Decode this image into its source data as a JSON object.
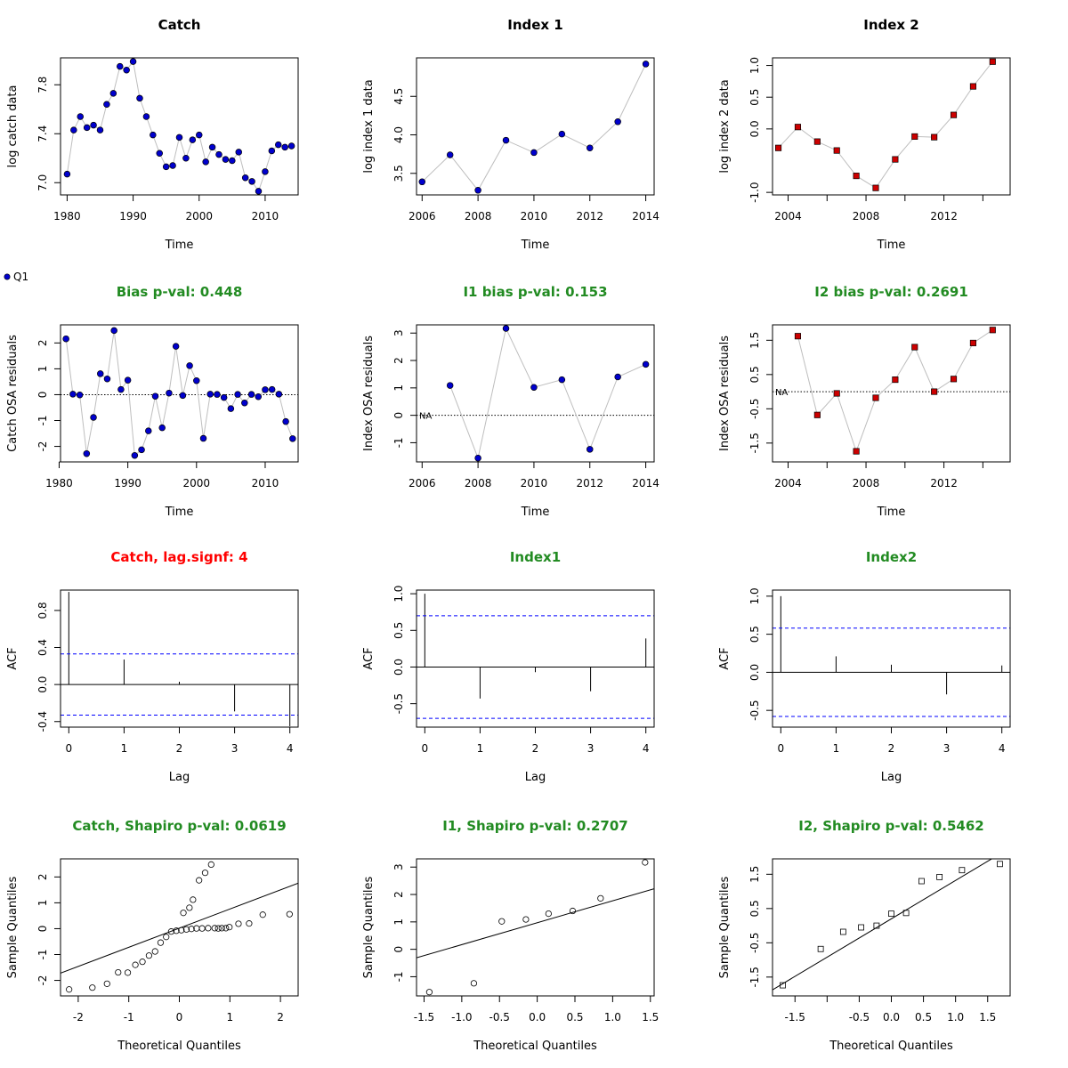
{
  "colors": {
    "title_default": "#000000",
    "title_good": "#228B22",
    "title_bad": "#FF0000",
    "catch_point_fill": "#0000CD",
    "index1_point_fill": "#0000CD",
    "index2_point_fill": "#CC0000",
    "connect_line": "#BEBEBE",
    "ci_line": "#0000FF"
  },
  "legend": {
    "label": "Q1"
  },
  "chart_data": [
    {
      "id": "catch-data",
      "type": "line",
      "title": "Catch",
      "title_color": "default",
      "xlabel": "Time",
      "ylabel": "log catch data",
      "xlim": [
        1979,
        2015
      ],
      "ylim": [
        6.9,
        8.02
      ],
      "xticks": [
        1980,
        1990,
        2000,
        2010
      ],
      "yticks": [
        7.0,
        7.4,
        7.8
      ],
      "ytick_labels": [
        "7.0",
        "7.4",
        "7.8"
      ],
      "point": "circle",
      "point_color": "catch",
      "series": [
        {
          "x": [
            1980,
            1981,
            1982,
            1983,
            1984,
            1985,
            1986,
            1987,
            1988,
            1989,
            1990,
            1991,
            1992,
            1993,
            1994,
            1995,
            1996,
            1997,
            1998,
            1999,
            2000,
            2001,
            2002,
            2003,
            2004,
            2005,
            2006,
            2007,
            2008,
            2009,
            2010,
            2011,
            2012,
            2013,
            2014
          ],
          "y": [
            7.07,
            7.43,
            7.54,
            7.45,
            7.47,
            7.43,
            7.64,
            7.73,
            7.95,
            7.92,
            7.99,
            7.69,
            7.54,
            7.39,
            7.24,
            7.13,
            7.14,
            7.37,
            7.2,
            7.35,
            7.39,
            7.17,
            7.29,
            7.23,
            7.19,
            7.18,
            7.25,
            7.04,
            7.01,
            6.93,
            7.09,
            7.26,
            7.31,
            7.29,
            7.3
          ]
        }
      ]
    },
    {
      "id": "index1-data",
      "type": "line",
      "title": "Index 1",
      "title_color": "default",
      "xlabel": "Time",
      "ylabel": "log index 1 data",
      "xlim": [
        2005.8,
        2014.3
      ],
      "ylim": [
        3.22,
        5.0
      ],
      "xticks": [
        2006,
        2008,
        2010,
        2012,
        2014
      ],
      "yticks": [
        3.5,
        4.0,
        4.5
      ],
      "ytick_labels": [
        "3.5",
        "4.0",
        "4.5"
      ],
      "point": "circle",
      "point_color": "index1",
      "series": [
        {
          "x": [
            2006,
            2007,
            2008,
            2009,
            2010,
            2011,
            2012,
            2013,
            2014
          ],
          "y": [
            3.39,
            3.74,
            3.28,
            3.93,
            3.77,
            4.01,
            3.83,
            4.17,
            4.92
          ]
        }
      ]
    },
    {
      "id": "index2-data",
      "type": "line",
      "title": "Index 2",
      "title_color": "default",
      "xlabel": "Time",
      "ylabel": "log index 2 data",
      "xlim": [
        2003.2,
        2015.4
      ],
      "ylim": [
        -1.04,
        1.12
      ],
      "xticks": [
        2004,
        2008,
        2012
      ],
      "minor_xticks": [
        2006,
        2010,
        2014
      ],
      "yticks": [
        -1.0,
        0.0,
        0.5,
        1.0
      ],
      "ytick_labels": [
        "-1.0",
        "0.0",
        "0.5",
        "1.0"
      ],
      "point": "square",
      "point_color": "index2",
      "series": [
        {
          "x": [
            2003.5,
            2004.5,
            2005.5,
            2006.5,
            2007.5,
            2008.5,
            2009.5,
            2010.5,
            2011.5,
            2012.5,
            2013.5,
            2014.5
          ],
          "y": [
            -0.3,
            0.03,
            -0.2,
            -0.34,
            -0.74,
            -0.93,
            -0.48,
            -0.12,
            -0.13,
            0.22,
            0.67,
            1.06
          ]
        }
      ]
    },
    {
      "id": "catch-resid",
      "type": "scatter",
      "title": "Bias p-val: 0.448",
      "title_color": "good",
      "xlabel": "Time",
      "ylabel": "Catch OSA residuals",
      "xlim": [
        1980.2,
        2014.8
      ],
      "ylim": [
        -2.6,
        2.7
      ],
      "xticks": [
        1980,
        1990,
        2000,
        2010
      ],
      "yticks": [
        -2,
        -1,
        0,
        1,
        2
      ],
      "ytick_labels": [
        "-2",
        "-1",
        "0",
        "1",
        "2"
      ],
      "hline": 0,
      "point": "circle",
      "point_color": "catch",
      "series": [
        {
          "x": [
            1981,
            1982,
            1983,
            1984,
            1985,
            1986,
            1987,
            1988,
            1989,
            1990,
            1991,
            1992,
            1993,
            1994,
            1995,
            1996,
            1997,
            1998,
            1999,
            2000,
            2001,
            2002,
            2003,
            2004,
            2005,
            2006,
            2007,
            2008,
            2009,
            2010,
            2011,
            2012,
            2013,
            2014
          ],
          "y": [
            2.16,
            0.02,
            -0.01,
            -2.28,
            -0.88,
            0.81,
            0.61,
            2.48,
            0.2,
            0.56,
            -2.35,
            -2.13,
            -1.4,
            -0.06,
            -1.28,
            0.06,
            1.87,
            -0.03,
            1.12,
            0.54,
            -1.69,
            0.02,
            0.01,
            -0.11,
            -0.54,
            0.01,
            -0.32,
            0.01,
            -0.08,
            0.19,
            0.2,
            0.02,
            -1.04,
            -1.7
          ]
        }
      ]
    },
    {
      "id": "index1-resid",
      "type": "scatter",
      "title": "I1 bias p-val: 0.153",
      "title_color": "good",
      "xlabel": "Time",
      "ylabel": "Index OSA residuals",
      "xlim": [
        2005.8,
        2014.3
      ],
      "ylim": [
        -1.7,
        3.3
      ],
      "xticks": [
        2006,
        2008,
        2010,
        2012,
        2014
      ],
      "yticks": [
        -1,
        0,
        1,
        2,
        3
      ],
      "ytick_labels": [
        "-1",
        "0",
        "1",
        "2",
        "3"
      ],
      "hline": 0,
      "na_label": "NA",
      "point": "circle",
      "point_color": "index1",
      "series": [
        {
          "x": [
            2007,
            2008,
            2009,
            2010,
            2011,
            2012,
            2013,
            2014
          ],
          "y": [
            1.09,
            -1.56,
            3.17,
            1.02,
            1.3,
            -1.24,
            1.4,
            1.86
          ]
        }
      ]
    },
    {
      "id": "index2-resid",
      "type": "scatter",
      "title": "I2 bias p-val: 0.2691",
      "title_color": "good",
      "xlabel": "Time",
      "ylabel": "Index OSA residuals",
      "xlim": [
        2003.2,
        2015.4
      ],
      "ylim": [
        -2.05,
        1.95
      ],
      "xticks": [
        2004,
        2008,
        2012
      ],
      "minor_xticks": [
        2006,
        2010,
        2014
      ],
      "yticks": [
        -1.5,
        -0.5,
        0.5,
        1.5
      ],
      "ytick_labels": [
        "-1.5",
        "-0.5",
        "0.5",
        "1.5"
      ],
      "hline": 0,
      "na_label": "NA",
      "point": "square",
      "point_color": "index2",
      "series": [
        {
          "x": [
            2004.5,
            2005.5,
            2006.5,
            2007.5,
            2008.5,
            2009.5,
            2010.5,
            2011.5,
            2012.5,
            2013.5,
            2014.5
          ],
          "y": [
            1.62,
            -0.68,
            -0.05,
            -1.74,
            -0.18,
            0.35,
            1.3,
            0.0,
            0.37,
            1.42,
            1.8
          ]
        }
      ]
    },
    {
      "id": "catch-acf",
      "type": "bar",
      "title": "Catch, lag.signf: 4",
      "title_color": "bad",
      "xlabel": "Lag",
      "ylabel": "ACF",
      "xlim": [
        -0.15,
        4.15
      ],
      "ylim": [
        -0.46,
        1.02
      ],
      "xticks": [
        0,
        1,
        2,
        3,
        4
      ],
      "yticks": [
        -0.4,
        0.0,
        0.4,
        0.8
      ],
      "ytick_labels": [
        "-0.4",
        "0.0",
        "0.4",
        "0.8"
      ],
      "ci": 0.33,
      "lags": [
        0,
        1,
        2,
        3,
        4
      ],
      "acf": [
        1.0,
        0.27,
        0.03,
        -0.29,
        -0.45
      ]
    },
    {
      "id": "index1-acf",
      "type": "bar",
      "title": "Index1",
      "title_color": "good",
      "xlabel": "Lag",
      "ylabel": "ACF",
      "xlim": [
        -0.15,
        4.15
      ],
      "ylim": [
        -0.82,
        1.05
      ],
      "xticks": [
        0,
        1,
        2,
        3,
        4
      ],
      "yticks": [
        -0.5,
        0.0,
        0.5,
        1.0
      ],
      "ytick_labels": [
        "-0.5",
        "0.0",
        "0.5",
        "1.0"
      ],
      "ci": 0.7,
      "lags": [
        0,
        1,
        2,
        3,
        4
      ],
      "acf": [
        1.0,
        -0.43,
        -0.07,
        -0.33,
        0.39
      ]
    },
    {
      "id": "index2-acf",
      "type": "bar",
      "title": "Index2",
      "title_color": "good",
      "xlabel": "Lag",
      "ylabel": "ACF",
      "xlim": [
        -0.15,
        4.15
      ],
      "ylim": [
        -0.72,
        1.08
      ],
      "xticks": [
        0,
        1,
        2,
        3,
        4
      ],
      "yticks": [
        -0.5,
        0.0,
        0.5,
        1.0
      ],
      "ytick_labels": [
        "-0.5",
        "0.0",
        "0.5",
        "1.0"
      ],
      "ci": 0.58,
      "lags": [
        0,
        1,
        2,
        3,
        4
      ],
      "acf": [
        1.0,
        0.21,
        0.1,
        -0.29,
        0.09
      ]
    },
    {
      "id": "catch-qq",
      "type": "scatter",
      "title": "Catch, Shapiro p-val: 0.0619",
      "title_color": "good",
      "xlabel": "Theoretical Quantiles",
      "ylabel": "Sample Quantiles",
      "xlim": [
        -2.35,
        2.35
      ],
      "ylim": [
        -2.6,
        2.7
      ],
      "xticks": [
        -2,
        -1,
        0,
        1,
        2
      ],
      "xtick_labels": [
        "-2",
        "-1",
        "0",
        "1",
        "2"
      ],
      "yticks": [
        -2,
        -1,
        0,
        1,
        2
      ],
      "ytick_labels": [
        "-2",
        "-1",
        "0",
        "1",
        "2"
      ],
      "qqline": {
        "slope": 0.74,
        "intercept": 0.02
      },
      "point": "open-circle",
      "series": [
        {
          "x": [
            -2.18,
            -1.72,
            -1.43,
            -1.21,
            -1.02,
            -0.87,
            -0.73,
            -0.6,
            -0.48,
            -0.37,
            -0.26,
            -0.16,
            -0.06,
            0.04,
            0.14,
            0.24,
            0.34,
            0.45,
            0.57,
            0.7,
            0.84,
            0.99,
            1.17,
            1.38,
            1.65,
            2.18,
            0.08,
            0.2,
            0.27,
            0.39,
            0.51,
            0.63,
            0.77,
            0.92
          ],
          "y": [
            -2.35,
            -2.28,
            -2.13,
            -1.69,
            -1.7,
            -1.4,
            -1.28,
            -1.04,
            -0.88,
            -0.54,
            -0.32,
            -0.11,
            -0.08,
            -0.06,
            -0.03,
            -0.01,
            0.01,
            0.01,
            0.02,
            0.02,
            0.02,
            0.06,
            0.19,
            0.2,
            0.54,
            0.56,
            0.61,
            0.81,
            1.12,
            1.87,
            2.16,
            2.48,
            0.01,
            0.02
          ]
        }
      ]
    },
    {
      "id": "index1-qq",
      "type": "scatter",
      "title": "I1, Shapiro p-val: 0.2707",
      "title_color": "good",
      "xlabel": "Theoretical Quantiles",
      "ylabel": "Sample Quantiles",
      "xlim": [
        -1.6,
        1.55
      ],
      "ylim": [
        -1.7,
        3.3
      ],
      "xticks": [
        -1.5,
        -1.0,
        -0.5,
        0.0,
        0.5,
        1.0,
        1.5
      ],
      "xtick_labels": [
        "-1.5",
        "-1.0",
        "-0.5",
        "0.0",
        "0.5",
        "1.0",
        "1.5"
      ],
      "yticks": [
        -1,
        0,
        1,
        2,
        3
      ],
      "ytick_labels": [
        "-1",
        "0",
        "1",
        "2",
        "3"
      ],
      "qqline": {
        "slope": 0.8,
        "intercept": 0.97
      },
      "point": "open-circle",
      "series": [
        {
          "x": [
            -1.43,
            -0.84,
            -0.47,
            -0.15,
            0.15,
            0.47,
            0.84,
            1.43
          ],
          "y": [
            -1.56,
            -1.24,
            1.02,
            1.09,
            1.3,
            1.4,
            1.86,
            3.17
          ]
        }
      ]
    },
    {
      "id": "index2-qq",
      "type": "scatter",
      "title": "I2, Shapiro p-val: 0.5462",
      "title_color": "good",
      "xlabel": "Theoretical Quantiles",
      "ylabel": "Sample Quantiles",
      "xlim": [
        -1.85,
        1.85
      ],
      "ylim": [
        -2.05,
        1.95
      ],
      "xticks": [
        -1.5,
        -1.0,
        -0.5,
        0.0,
        0.5,
        1.0,
        1.5
      ],
      "xtick_labels": [
        "-1.5",
        "",
        "-0.5",
        "0.0",
        "0.5",
        "1.0",
        "1.5"
      ],
      "yticks": [
        -1.5,
        -0.5,
        0.5,
        1.5
      ],
      "ytick_labels": [
        "-1.5",
        "-0.5",
        "0.5",
        "1.5"
      ],
      "qqline": {
        "slope": 1.12,
        "intercept": 0.2
      },
      "point": "open-square",
      "series": [
        {
          "x": [
            -1.69,
            -1.1,
            -0.75,
            -0.47,
            -0.23,
            0.0,
            0.23,
            0.47,
            0.75,
            1.1,
            1.69
          ],
          "y": [
            -1.74,
            -0.68,
            -0.18,
            -0.05,
            0.0,
            0.35,
            0.37,
            1.3,
            1.42,
            1.62,
            1.8
          ]
        }
      ]
    }
  ]
}
